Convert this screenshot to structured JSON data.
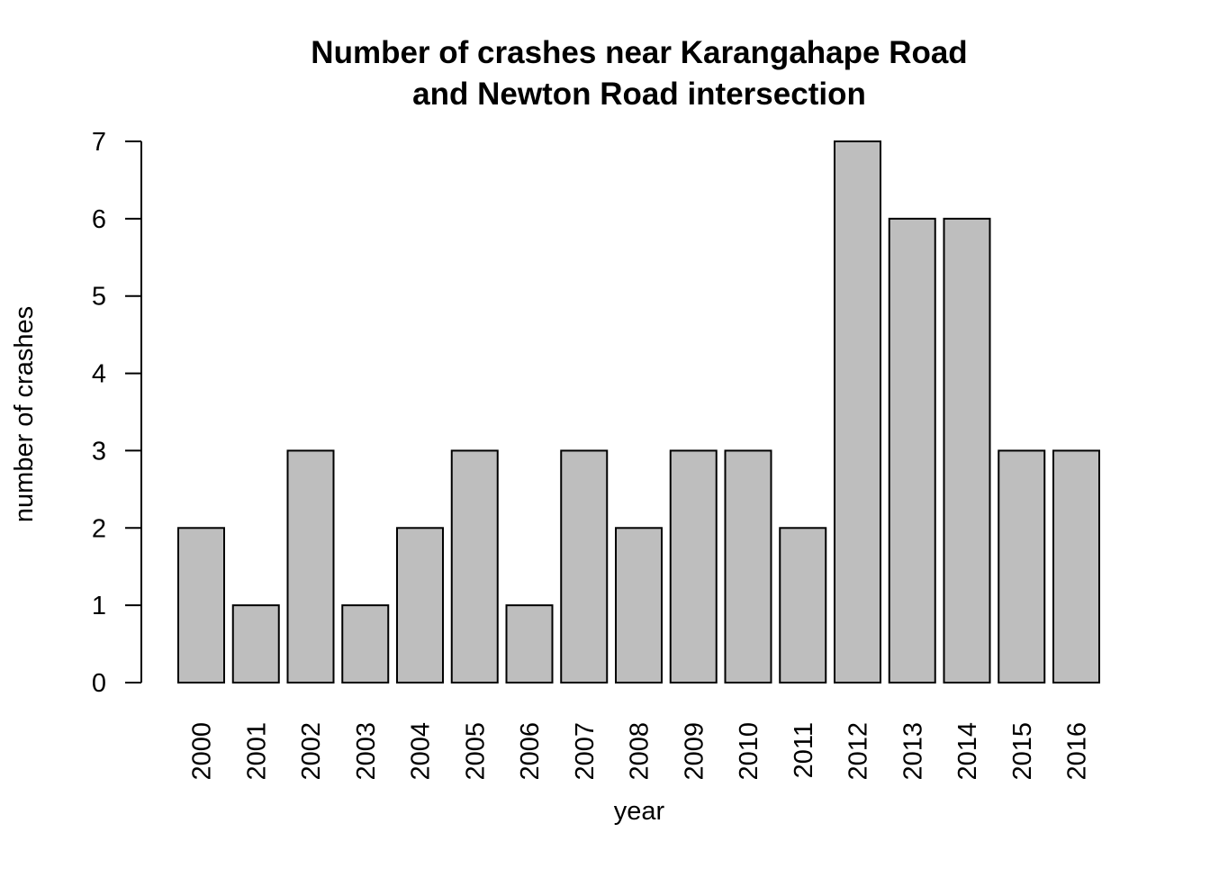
{
  "chart_data": {
    "type": "bar",
    "title_lines": [
      "Number of crashes near Karangahape Road",
      "and Newton Road intersection"
    ],
    "xlabel": "year",
    "ylabel": "number of crashes",
    "categories": [
      "2000",
      "2001",
      "2002",
      "2003",
      "2004",
      "2005",
      "2006",
      "2007",
      "2008",
      "2009",
      "2010",
      "2011",
      "2012",
      "2013",
      "2014",
      "2015",
      "2016"
    ],
    "values": [
      2,
      1,
      3,
      1,
      2,
      3,
      1,
      3,
      2,
      3,
      3,
      2,
      7,
      6,
      6,
      3,
      3
    ],
    "yticks": [
      0,
      1,
      2,
      3,
      4,
      5,
      6,
      7
    ],
    "ylim": [
      0,
      7
    ],
    "bar_color": "#bebebe",
    "bar_border_color": "#000000",
    "grid": false,
    "legend": "none",
    "x_tick_orientation": "vertical"
  }
}
